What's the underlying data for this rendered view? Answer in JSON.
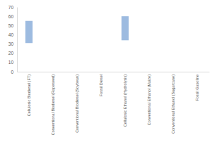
{
  "chart_data": {
    "type": "floating_bar",
    "categories": [
      "Cellulosic Biodiesel (FT)",
      "Conventional Biodiesel (Rapeseed)",
      "Conventional Biodiesel (Soybean)",
      "Fossil Diesel",
      "Cellulosic Ethanol (Hydrolysis)",
      "Conventional Ethanol (Maize)",
      "Conventional Ethanol (Sugarcane)",
      "Fossil Gasoline"
    ],
    "values": [
      [
        31,
        55
      ],
      null,
      null,
      null,
      [
        34,
        60
      ],
      null,
      null,
      null
    ],
    "color": "#9dbbe0",
    "ylim": [
      0,
      70
    ],
    "yticks": [
      0,
      10,
      20,
      30,
      40,
      50,
      60,
      70
    ],
    "grid": false
  }
}
